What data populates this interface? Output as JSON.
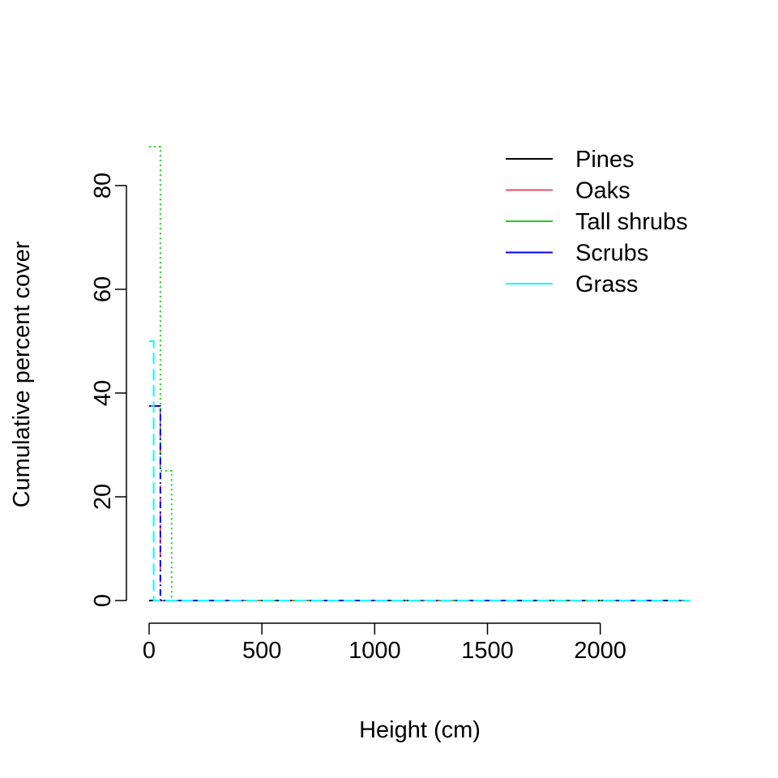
{
  "chart_data": {
    "type": "line",
    "step": true,
    "xlabel": "Height (cm)",
    "ylabel": "Cumulative percent cover",
    "xlim": [
      0,
      2400
    ],
    "ylim": [
      0,
      87.5
    ],
    "x_ticks": [
      0,
      500,
      1000,
      1500,
      2000
    ],
    "y_ticks": [
      0,
      20,
      40,
      60,
      80
    ],
    "grid": false,
    "legend_position": "top-right",
    "series": [
      {
        "name": "Pines",
        "color": "#000000",
        "dash": "solid",
        "x": [
          0,
          2400
        ],
        "y": [
          0,
          0
        ]
      },
      {
        "name": "Oaks",
        "color": "#DF536B",
        "dash": "dashed",
        "x": [
          0,
          50,
          50,
          2400
        ],
        "y": [
          37.5,
          37.5,
          0,
          0
        ]
      },
      {
        "name": "Tall shrubs",
        "color": "#22CC22",
        "dash": "dotted",
        "x": [
          0,
          50,
          50,
          100,
          100,
          2400
        ],
        "y": [
          87.5,
          87.5,
          25,
          25,
          0,
          0
        ]
      },
      {
        "name": "Scrubs",
        "color": "#0000EE",
        "dash": "dotdash",
        "x": [
          0,
          50,
          50,
          2400
        ],
        "y": [
          37.5,
          37.5,
          0,
          0
        ]
      },
      {
        "name": "Grass",
        "color": "#00FFFF",
        "dash": "longdash",
        "x": [
          0,
          20,
          20,
          2400
        ],
        "y": [
          50,
          50,
          0,
          0
        ]
      }
    ]
  }
}
